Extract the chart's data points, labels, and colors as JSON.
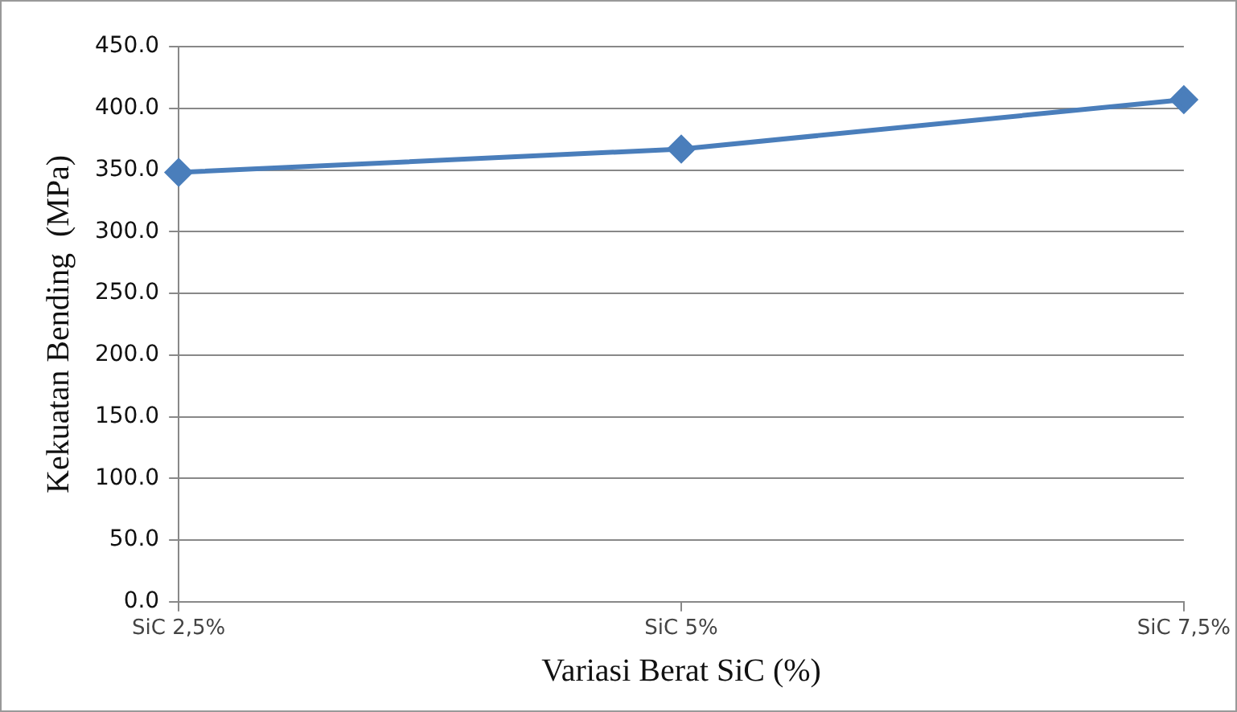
{
  "chart_data": {
    "type": "line",
    "xlabel": "Variasi Berat SiC (%)",
    "ylabel": "Kekuatan Bending  (MPa)",
    "categories": [
      "SiC 2,5%",
      "SiC 5%",
      "SiC 7,5%"
    ],
    "series": [
      {
        "color": "#4a7ebb",
        "values": [
          348,
          367,
          407
        ]
      }
    ],
    "ylim": [
      0,
      450
    ],
    "yticks": [
      {
        "value": 0,
        "label": "0.0"
      },
      {
        "value": 50,
        "label": "50.0"
      },
      {
        "value": 100,
        "label": "100.0"
      },
      {
        "value": 150,
        "label": "150.0"
      },
      {
        "value": 200,
        "label": "200.0"
      },
      {
        "value": 250,
        "label": "250.0"
      },
      {
        "value": 300,
        "label": "300.0"
      },
      {
        "value": 350,
        "label": "350.0"
      },
      {
        "value": 400,
        "label": "400.0"
      },
      {
        "value": 450,
        "label": "450.0"
      }
    ],
    "grid": "y",
    "legend": false,
    "marker": "diamond",
    "line_style": "solid"
  }
}
